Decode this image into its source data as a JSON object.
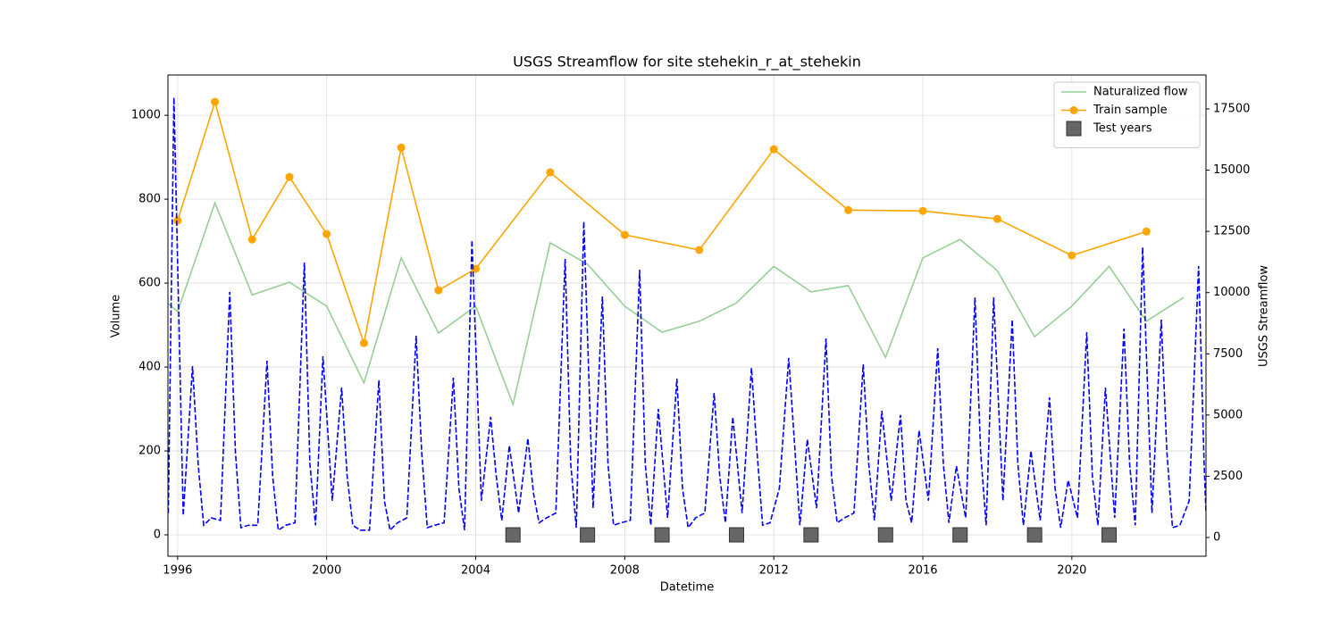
{
  "chart_data": {
    "type": "line",
    "title": "USGS Streamflow for site stehekin_r_at_stehekin",
    "xlabel": "Datetime",
    "ylabel": "Volume",
    "y2label": "USGS Streamflow",
    "xlim": [
      1995.74,
      2023.6
    ],
    "xticks": [
      1996,
      2000,
      2004,
      2008,
      2012,
      2016,
      2020
    ],
    "ylim": [
      -51,
      1096
    ],
    "yticks": [
      0,
      200,
      400,
      600,
      800,
      1000
    ],
    "y2lim": [
      -766,
      18885
    ],
    "y2ticks": [
      0,
      2500,
      5000,
      7500,
      10000,
      12500,
      15000,
      17500
    ],
    "grid": true,
    "legend": "upper right",
    "series": [
      {
        "name": "Naturalized flow",
        "color": "#97cf97",
        "line": "solid",
        "marker": "none",
        "axis": "y",
        "x": [
          1995.75,
          1996,
          1997,
          1998,
          1999,
          2000,
          2001,
          2002,
          2003,
          2004,
          2005,
          2006,
          2007,
          2008,
          2009,
          2010,
          2011,
          2012,
          2013,
          2014,
          2015,
          2016,
          2017,
          2018,
          2019,
          2020,
          2021,
          2022,
          2023
        ],
        "values": [
          551,
          532,
          791,
          572,
          602,
          545,
          362,
          660,
          481,
          545,
          311,
          696,
          645,
          545,
          483,
          509,
          553,
          640,
          579,
          594,
          423,
          660,
          704,
          630,
          472,
          545,
          640,
          509,
          566
        ]
      },
      {
        "name": "Train sample",
        "color": "#ffa500",
        "line": "solid",
        "marker": "circle",
        "axis": "y",
        "x": [
          1996,
          1997,
          1998,
          1999,
          2000,
          2001,
          2002,
          2003,
          2004,
          2006,
          2008,
          2010,
          2012,
          2014,
          2016,
          2018,
          2020,
          2022
        ],
        "values": [
          749,
          1032,
          704,
          853,
          717,
          457,
          923,
          583,
          634,
          864,
          715,
          679,
          919,
          774,
          772,
          753,
          666,
          723
        ]
      },
      {
        "name": "Test years",
        "color": "#666666",
        "line": "none",
        "marker": "square",
        "axis": "y",
        "x": [
          2005,
          2007,
          2009,
          2011,
          2013,
          2015,
          2017,
          2019,
          2021
        ],
        "values": [
          0,
          0,
          0,
          0,
          0,
          0,
          0,
          0,
          0
        ]
      },
      {
        "color": "#0000ff",
        "line": "dashed",
        "marker": "none",
        "axis": "y2",
        "x": [
          1995.75,
          1995.9,
          1996.15,
          1996.4,
          1996.55,
          1996.7,
          1996.9,
          1997.15,
          1997.4,
          1997.55,
          1997.7,
          1997.9,
          1998.15,
          1998.4,
          1998.55,
          1998.7,
          1998.9,
          1999.15,
          1999.4,
          1999.55,
          1999.7,
          1999.9,
          2000.15,
          2000.4,
          2000.55,
          2000.7,
          2000.9,
          2001.15,
          2001.4,
          2001.55,
          2001.7,
          2001.9,
          2002.15,
          2002.4,
          2002.55,
          2002.7,
          2002.9,
          2003.15,
          2003.4,
          2003.55,
          2003.7,
          2003.9,
          2004.15,
          2004.4,
          2004.55,
          2004.7,
          2004.9,
          2005.15,
          2005.4,
          2005.55,
          2005.7,
          2005.9,
          2006.15,
          2006.4,
          2006.55,
          2006.7,
          2006.9,
          2007.15,
          2007.4,
          2007.55,
          2007.7,
          2007.9,
          2008.15,
          2008.4,
          2008.55,
          2008.7,
          2008.9,
          2009.15,
          2009.4,
          2009.55,
          2009.7,
          2009.9,
          2010.15,
          2010.4,
          2010.55,
          2010.7,
          2010.9,
          2011.15,
          2011.4,
          2011.55,
          2011.7,
          2011.9,
          2012.15,
          2012.4,
          2012.55,
          2012.7,
          2012.9,
          2013.15,
          2013.4,
          2013.55,
          2013.7,
          2013.9,
          2014.15,
          2014.4,
          2014.55,
          2014.7,
          2014.9,
          2015.15,
          2015.4,
          2015.55,
          2015.7,
          2015.9,
          2016.15,
          2016.4,
          2016.55,
          2016.7,
          2016.9,
          2017.15,
          2017.4,
          2017.55,
          2017.7,
          2017.9,
          2018.15,
          2018.4,
          2018.55,
          2018.7,
          2018.9,
          2019.15,
          2019.4,
          2019.55,
          2019.7,
          2019.9,
          2020.15,
          2020.4,
          2020.55,
          2020.7,
          2020.9,
          2021.15,
          2021.4,
          2021.55,
          2021.7,
          2021.9,
          2022.15,
          2022.4,
          2022.55,
          2022.7,
          2022.9,
          2023.15,
          2023.4,
          2023.55,
          2023.6
        ],
        "values": [
          1000,
          17970,
          900,
          7000,
          3000,
          500,
          800,
          700,
          10025,
          3500,
          400,
          500,
          500,
          7220,
          2500,
          300,
          500,
          600,
          11230,
          3000,
          500,
          7400,
          1500,
          6125,
          2500,
          500,
          300,
          300,
          6420,
          1500,
          300,
          600,
          800,
          8240,
          3500,
          400,
          500,
          600,
          6525,
          2000,
          300,
          12140,
          1500,
          4920,
          2500,
          700,
          3755,
          1000,
          4050,
          1800,
          600,
          800,
          1000,
          11375,
          3000,
          400,
          12905,
          1200,
          9845,
          3000,
          500,
          600,
          700,
          10935,
          3000,
          500,
          5250,
          800,
          6490,
          2000,
          400,
          800,
          1000,
          5905,
          2500,
          600,
          4920,
          1000,
          6925,
          3500,
          500,
          600,
          2000,
          7330,
          4000,
          500,
          4010,
          1200,
          8130,
          2500,
          600,
          800,
          1000,
          7070,
          3000,
          700,
          5175,
          1500,
          5000,
          1500,
          600,
          4375,
          1500,
          7730,
          3000,
          600,
          2915,
          800,
          9805,
          3500,
          500,
          9805,
          1500,
          8895,
          3000,
          500,
          3535,
          700,
          5725,
          2000,
          400,
          2335,
          800,
          8385,
          2500,
          500,
          6125,
          800,
          8530,
          3000,
          500,
          11850,
          1000,
          8895,
          3500,
          400,
          500,
          1500,
          11085,
          3000,
          1000
        ]
      }
    ]
  }
}
